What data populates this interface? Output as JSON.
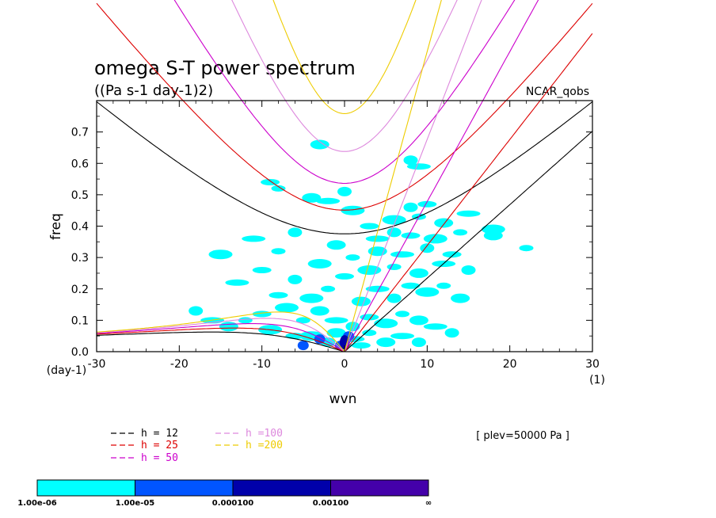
{
  "chart_data": {
    "type": "heatmap",
    "title": "omega S-T power spectrum",
    "subtitle": "((Pa s-1 day-1)2)",
    "dataset_label": "NCAR_qobs",
    "xlabel": "wvn",
    "ylabel": "freq",
    "x_unit": "(1)",
    "y_unit": "(day-1)",
    "xlim": [
      -30,
      30
    ],
    "ylim": [
      0.0,
      0.8
    ],
    "x_ticks": [
      -30,
      -20,
      -10,
      0,
      10,
      20,
      30
    ],
    "x_tick_labels": [
      "-30",
      "-20",
      "-10",
      "0",
      "10",
      "20",
      "30"
    ],
    "y_ticks": [
      0.0,
      0.1,
      0.2,
      0.3,
      0.4,
      0.5,
      0.6,
      0.7
    ],
    "y_tick_labels": [
      "0.0",
      "0.1",
      "0.2",
      "0.3",
      "0.4",
      "0.5",
      "0.6",
      "0.7"
    ],
    "plev_label": "[ plev=50000 Pa ]",
    "dispersion_curves": [
      {
        "name": "h = 12",
        "color": "#000000",
        "value": 12
      },
      {
        "name": "h = 25",
        "color": "#dd0000",
        "value": 25
      },
      {
        "name": "h = 50",
        "color": "#cc00cc",
        "value": 50
      },
      {
        "name": "h =100",
        "color": "#dd88dd",
        "value": 100
      },
      {
        "name": "h =200",
        "color": "#eecc00",
        "value": 200
      }
    ],
    "colorbar": {
      "labels": [
        "1.00e-06",
        "1.00e-05",
        "0.000100",
        "0.00100",
        "∞"
      ],
      "colors": [
        "#00ffff",
        "#0055ff",
        "#0000aa",
        "#4400aa"
      ]
    },
    "power_regions": [
      {
        "wvn": 0.0,
        "freq": 0.03,
        "level": 3
      },
      {
        "wvn": -0.5,
        "freq": 0.02,
        "level": 2
      },
      {
        "wvn": 0.5,
        "freq": 0.05,
        "level": 2
      },
      {
        "wvn": -3.0,
        "freq": 0.04,
        "level": 2
      },
      {
        "wvn": -5.0,
        "freq": 0.02,
        "level": 2
      },
      {
        "wvn": 0,
        "freq": 0.02,
        "level": 1
      },
      {
        "wvn": -1,
        "freq": 0.06,
        "level": 1
      },
      {
        "wvn": 1,
        "freq": 0.04,
        "level": 1
      },
      {
        "wvn": -2,
        "freq": 0.03,
        "level": 1
      },
      {
        "wvn": 2,
        "freq": 0.02,
        "level": 1
      },
      {
        "wvn": -4,
        "freq": 0.05,
        "level": 1
      },
      {
        "wvn": 3,
        "freq": 0.06,
        "level": 1
      },
      {
        "wvn": 5,
        "freq": 0.03,
        "level": 1
      },
      {
        "wvn": 7,
        "freq": 0.05,
        "level": 1
      },
      {
        "wvn": 9,
        "freq": 0.03,
        "level": 1
      },
      {
        "wvn": -6,
        "freq": 0.05,
        "level": 1
      },
      {
        "wvn": -9,
        "freq": 0.07,
        "level": 1
      },
      {
        "wvn": -12,
        "freq": 0.1,
        "level": 1
      },
      {
        "wvn": -14,
        "freq": 0.08,
        "level": 1
      },
      {
        "wvn": -16,
        "freq": 0.1,
        "level": 1
      },
      {
        "wvn": -18,
        "freq": 0.13,
        "level": 1
      },
      {
        "wvn": -10,
        "freq": 0.12,
        "level": 1
      },
      {
        "wvn": -7,
        "freq": 0.14,
        "level": 1
      },
      {
        "wvn": -5,
        "freq": 0.1,
        "level": 1
      },
      {
        "wvn": -3,
        "freq": 0.13,
        "level": 1
      },
      {
        "wvn": -1,
        "freq": 0.1,
        "level": 1
      },
      {
        "wvn": 1,
        "freq": 0.08,
        "level": 1
      },
      {
        "wvn": 3,
        "freq": 0.11,
        "level": 1
      },
      {
        "wvn": 5,
        "freq": 0.09,
        "level": 1
      },
      {
        "wvn": 7,
        "freq": 0.12,
        "level": 1
      },
      {
        "wvn": 9,
        "freq": 0.1,
        "level": 1
      },
      {
        "wvn": 11,
        "freq": 0.08,
        "level": 1
      },
      {
        "wvn": 13,
        "freq": 0.06,
        "level": 1
      },
      {
        "wvn": -8,
        "freq": 0.18,
        "level": 1
      },
      {
        "wvn": -4,
        "freq": 0.17,
        "level": 1
      },
      {
        "wvn": -2,
        "freq": 0.2,
        "level": 1
      },
      {
        "wvn": 2,
        "freq": 0.16,
        "level": 1
      },
      {
        "wvn": 4,
        "freq": 0.2,
        "level": 1
      },
      {
        "wvn": 6,
        "freq": 0.17,
        "level": 1
      },
      {
        "wvn": 8,
        "freq": 0.21,
        "level": 1
      },
      {
        "wvn": 10,
        "freq": 0.19,
        "level": 1
      },
      {
        "wvn": 12,
        "freq": 0.21,
        "level": 1
      },
      {
        "wvn": 14,
        "freq": 0.17,
        "level": 1
      },
      {
        "wvn": -13,
        "freq": 0.22,
        "level": 1
      },
      {
        "wvn": -6,
        "freq": 0.23,
        "level": 1
      },
      {
        "wvn": 0,
        "freq": 0.24,
        "level": 1
      },
      {
        "wvn": 3,
        "freq": 0.26,
        "level": 1
      },
      {
        "wvn": 6,
        "freq": 0.27,
        "level": 1
      },
      {
        "wvn": 9,
        "freq": 0.25,
        "level": 1
      },
      {
        "wvn": 12,
        "freq": 0.28,
        "level": 1
      },
      {
        "wvn": 15,
        "freq": 0.26,
        "level": 1
      },
      {
        "wvn": -10,
        "freq": 0.26,
        "level": 1
      },
      {
        "wvn": -3,
        "freq": 0.28,
        "level": 1
      },
      {
        "wvn": 1,
        "freq": 0.3,
        "level": 1
      },
      {
        "wvn": 4,
        "freq": 0.32,
        "level": 1
      },
      {
        "wvn": 7,
        "freq": 0.31,
        "level": 1
      },
      {
        "wvn": 10,
        "freq": 0.33,
        "level": 1
      },
      {
        "wvn": 13,
        "freq": 0.31,
        "level": 1
      },
      {
        "wvn": -15,
        "freq": 0.31,
        "level": 1
      },
      {
        "wvn": -8,
        "freq": 0.32,
        "level": 1
      },
      {
        "wvn": -1,
        "freq": 0.34,
        "level": 1
      },
      {
        "wvn": 4,
        "freq": 0.36,
        "level": 1
      },
      {
        "wvn": 6,
        "freq": 0.38,
        "level": 1
      },
      {
        "wvn": 8,
        "freq": 0.37,
        "level": 1
      },
      {
        "wvn": 11,
        "freq": 0.36,
        "level": 1
      },
      {
        "wvn": 14,
        "freq": 0.38,
        "level": 1
      },
      {
        "wvn": 18,
        "freq": 0.37,
        "level": 1
      },
      {
        "wvn": -11,
        "freq": 0.36,
        "level": 1
      },
      {
        "wvn": -6,
        "freq": 0.38,
        "level": 1
      },
      {
        "wvn": 3,
        "freq": 0.4,
        "level": 1
      },
      {
        "wvn": 6,
        "freq": 0.42,
        "level": 1
      },
      {
        "wvn": 9,
        "freq": 0.43,
        "level": 1
      },
      {
        "wvn": 12,
        "freq": 0.41,
        "level": 1
      },
      {
        "wvn": 15,
        "freq": 0.44,
        "level": 1
      },
      {
        "wvn": 8,
        "freq": 0.46,
        "level": 1
      },
      {
        "wvn": 10,
        "freq": 0.47,
        "level": 1
      },
      {
        "wvn": 1,
        "freq": 0.45,
        "level": 1
      },
      {
        "wvn": -8,
        "freq": 0.52,
        "level": 1
      },
      {
        "wvn": -4,
        "freq": 0.49,
        "level": 1
      },
      {
        "wvn": -2,
        "freq": 0.48,
        "level": 1
      },
      {
        "wvn": 0,
        "freq": 0.51,
        "level": 1
      },
      {
        "wvn": -9,
        "freq": 0.54,
        "level": 1
      },
      {
        "wvn": 18,
        "freq": 0.39,
        "level": 1
      },
      {
        "wvn": 22,
        "freq": 0.33,
        "level": 1
      },
      {
        "wvn": -3,
        "freq": 0.66,
        "level": 1
      },
      {
        "wvn": 9,
        "freq": 0.59,
        "level": 1
      },
      {
        "wvn": 8,
        "freq": 0.61,
        "level": 1
      }
    ]
  }
}
